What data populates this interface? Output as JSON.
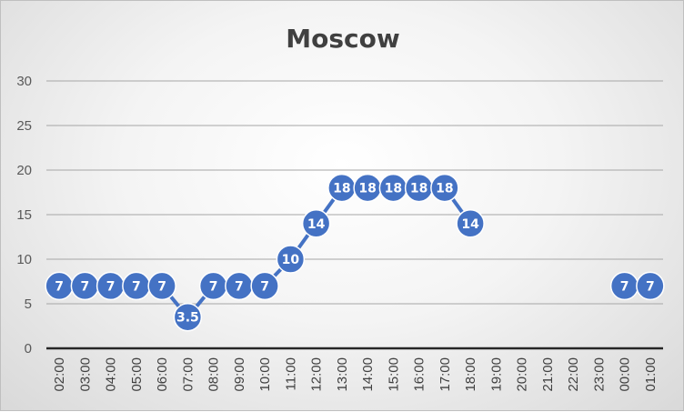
{
  "chart_data": {
    "type": "line",
    "title": "Moscow",
    "xlabel": "",
    "ylabel": "",
    "ylim": [
      0,
      30
    ],
    "yticks": [
      0,
      5,
      10,
      15,
      20,
      25,
      30
    ],
    "grid": true,
    "legend": "none",
    "categories": [
      "02:00",
      "03:00",
      "04:00",
      "05:00",
      "06:00",
      "07:00",
      "08:00",
      "09:00",
      "10:00",
      "11:00",
      "12:00",
      "13:00",
      "14:00",
      "15:00",
      "16:00",
      "17:00",
      "18:00",
      "19:00",
      "20:00",
      "21:00",
      "22:00",
      "23:00",
      "00:00",
      "01:00"
    ],
    "series": [
      {
        "color": "#4472c4",
        "values": [
          7,
          7,
          7,
          7,
          7,
          3.5,
          7,
          7,
          7,
          10,
          14,
          18,
          18,
          18,
          18,
          18,
          14,
          null,
          null,
          null,
          null,
          null,
          7,
          7
        ]
      }
    ]
  }
}
